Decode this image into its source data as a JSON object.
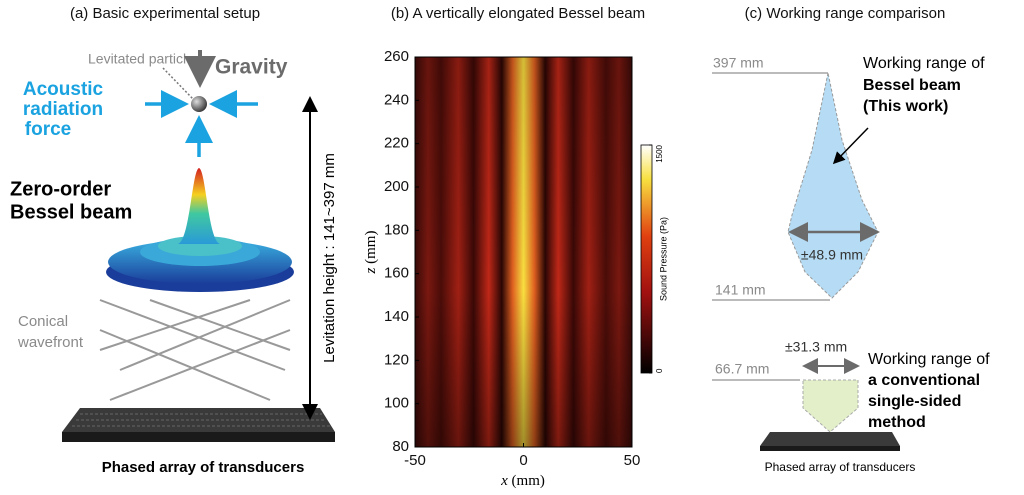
{
  "panel_a": {
    "title": "(a) Basic experimental setup",
    "particle_label": "Levitated particle",
    "gravity_label": "Gravity",
    "force_label": [
      "Acoustic",
      "radiation",
      "force"
    ],
    "beam_label": [
      "Zero-order",
      "Bessel beam"
    ],
    "wavefront_label": [
      "Conical",
      "wavefront"
    ],
    "height_label": "Levitation height : 141~397 mm",
    "array_label": "Phased array of transducers"
  },
  "chart_data": {
    "type": "heatmap",
    "title": "(b) A vertically elongated Bessel beam",
    "x_label": {
      "symbol": "x",
      "unit": "(mm)"
    },
    "y_label": {
      "symbol": "z",
      "unit": "(mm)"
    },
    "xlim": [
      -50,
      50
    ],
    "xticks": [
      -50,
      0,
      50
    ],
    "ylim": [
      80,
      260
    ],
    "yticks": [
      80,
      100,
      120,
      140,
      160,
      180,
      200,
      220,
      240,
      260
    ],
    "colorbar": {
      "label": "Sound Pressure (Pa)",
      "lim": [
        0,
        1500
      ],
      "ticks": [
        0,
        1500
      ]
    }
  },
  "panel_c": {
    "title": "(c) Working range comparison",
    "top_label": "397 mm",
    "bottom_label": "141 mm",
    "width_label": "±48.9 mm",
    "bessel_label": [
      "Working range of",
      "Bessel beam",
      "(This work)"
    ],
    "conv_height_label": "66.7 mm",
    "conv_width_label": "±31.3 mm",
    "conv_label": [
      "Working range of",
      "a conventional",
      "single-sided",
      "method"
    ],
    "array_label": "Phased array of transducers"
  }
}
